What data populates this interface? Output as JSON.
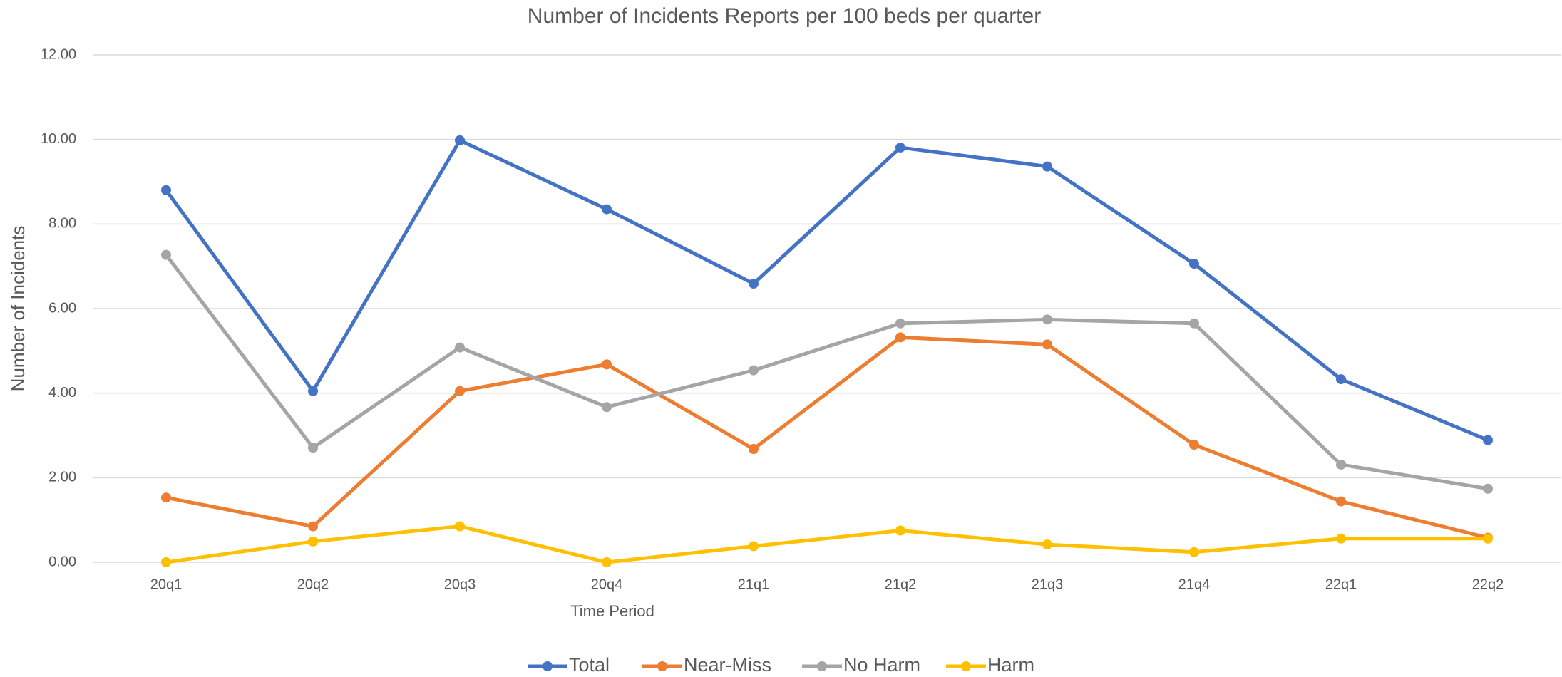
{
  "chart_data": {
    "type": "line",
    "title": "Number of Incidents Reports per 100 beds per quarter",
    "x_label": "Time Period",
    "y_label": "Number of Incidents",
    "categories": [
      "20q1",
      "20q2",
      "20q3",
      "20q4",
      "21q1",
      "21q2",
      "21q3",
      "21q4",
      "22q1",
      "22q2"
    ],
    "series": [
      {
        "name": "Total",
        "color": "#4472c4",
        "values": [
          8.8,
          4.05,
          9.98,
          8.35,
          6.59,
          9.81,
          9.36,
          7.06,
          4.33,
          2.89
        ]
      },
      {
        "name": "Near-Miss",
        "color": "#ed7d31",
        "values": [
          1.53,
          0.85,
          4.05,
          4.68,
          2.68,
          5.32,
          5.15,
          2.78,
          1.44,
          0.58
        ]
      },
      {
        "name": "No Harm",
        "color": "#a5a5a5",
        "values": [
          7.27,
          2.71,
          5.08,
          3.67,
          4.54,
          5.65,
          5.74,
          5.65,
          2.31,
          1.74
        ]
      },
      {
        "name": "Harm",
        "color": "#ffc000",
        "values": [
          0,
          0.49,
          0.85,
          0,
          0.38,
          0.75,
          0.42,
          0.24,
          0.56,
          0.56
        ]
      }
    ],
    "ylim": [
      0,
      12
    ],
    "yticks": [
      {
        "value": 0,
        "label": "0.00"
      },
      {
        "value": 2,
        "label": "2.00"
      },
      {
        "value": 4,
        "label": "4.00"
      },
      {
        "value": 6,
        "label": "6.00"
      },
      {
        "value": 8,
        "label": "8.00"
      },
      {
        "value": 10,
        "label": "10.00"
      },
      {
        "value": 12,
        "label": "12.00"
      }
    ],
    "grid": true,
    "legend": "bottom"
  }
}
